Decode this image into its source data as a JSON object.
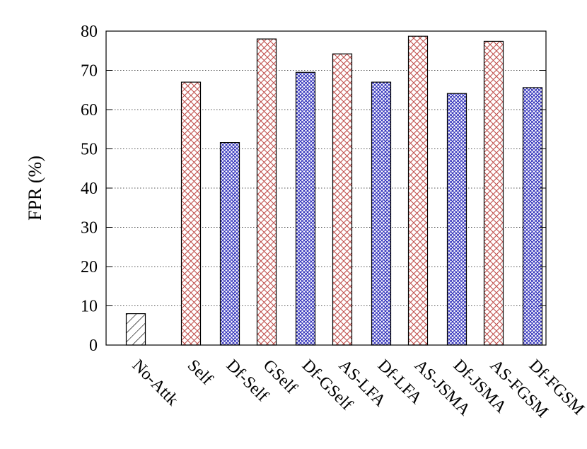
{
  "chart_data": {
    "type": "bar",
    "ylabel": "FPR (%)",
    "ylim": [
      0,
      80
    ],
    "yticks": [
      0,
      10,
      20,
      30,
      40,
      50,
      60,
      70,
      80
    ],
    "grid": "horizontal dotted",
    "bars": [
      {
        "label": "No-Attk",
        "value": 8,
        "style": "hatch-diagonal"
      },
      {
        "label": "Self",
        "value": 67,
        "style": "crosshatch-red"
      },
      {
        "label": "Df-Self",
        "value": 51.6,
        "style": "crosshatch-blue"
      },
      {
        "label": "GSelf",
        "value": 78,
        "style": "crosshatch-red"
      },
      {
        "label": "Df-GSelf",
        "value": 69.5,
        "style": "crosshatch-blue"
      },
      {
        "label": "AS-LFA",
        "value": 74.2,
        "style": "crosshatch-red"
      },
      {
        "label": "Df-LFA",
        "value": 67,
        "style": "crosshatch-blue"
      },
      {
        "label": "AS-JSMA",
        "value": 78.7,
        "style": "crosshatch-red"
      },
      {
        "label": "Df-JSMA",
        "value": 64.1,
        "style": "crosshatch-blue"
      },
      {
        "label": "AS-FGSM",
        "value": 77.4,
        "style": "crosshatch-red"
      },
      {
        "label": "Df-FGSM",
        "value": 65.6,
        "style": "crosshatch-blue"
      }
    ],
    "colors": {
      "red_hatch": "#c0504d",
      "blue_hatch": "#2a2ab8",
      "black": "#000000",
      "grid": "#555555"
    }
  }
}
